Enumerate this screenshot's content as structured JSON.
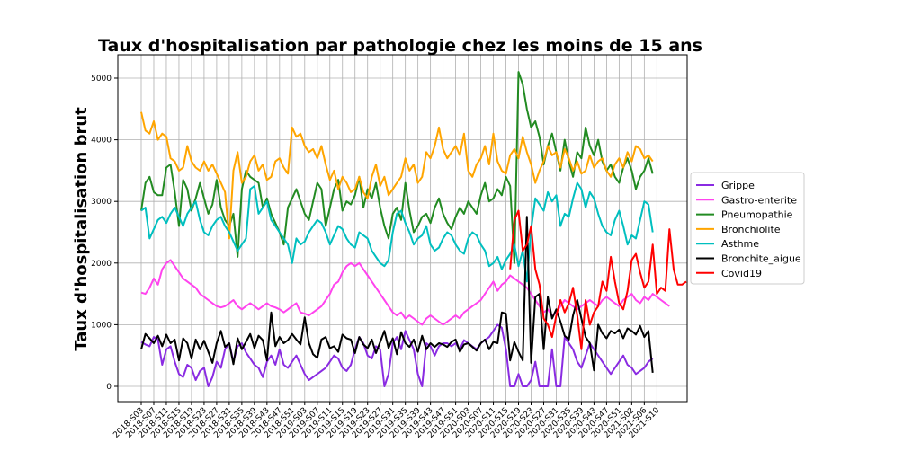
{
  "chart_data": {
    "type": "line",
    "title": "Taux d'hospitalisation par pathologie chez les moins de 15 ans",
    "ylabel": "Taux d'hospitalisation brut",
    "xlabel": "",
    "ylim": [
      0,
      5200
    ],
    "yticks": [
      0,
      1000,
      2000,
      3000,
      4000,
      5000
    ],
    "grid": true,
    "legend": "right",
    "tick_labels": [
      "2018-S03",
      "2018-S07",
      "2018-S11",
      "2018-S15",
      "2018-S19",
      "2018-S23",
      "2018-S27",
      "2018-S31",
      "2018-S35",
      "2018-S39",
      "2018-S43",
      "2018-S47",
      "2018-S51",
      "2019-S03",
      "2019-S07",
      "2019-S11",
      "2019-S15",
      "2019-S19",
      "2019-S23",
      "2019-S27",
      "2019-S31",
      "2019-S35",
      "2019-S39",
      "2019-S43",
      "2019-S47",
      "2019-S51",
      "2020-S03",
      "2020-S07",
      "2020-S11",
      "2020-S15",
      "2020-S19",
      "2020-S23",
      "2020-S27",
      "2020-S31",
      "2020-S35",
      "2020-S39",
      "2020-S43",
      "2020-S47",
      "2020-S51",
      "2021-S02",
      "2021-S06",
      "2021-S10"
    ],
    "series": [
      {
        "name": "Grippe",
        "color": "#8a2be2",
        "start": 0,
        "values": [
          720,
          680,
          650,
          800,
          760,
          350,
          600,
          650,
          400,
          200,
          150,
          350,
          300,
          100,
          250,
          300,
          0,
          150,
          400,
          300,
          600,
          700,
          400,
          650,
          700,
          550,
          450,
          350,
          300,
          150,
          400,
          500,
          350,
          600,
          350,
          300,
          400,
          500,
          350,
          200,
          100,
          150,
          200,
          250,
          300,
          400,
          500,
          450,
          300,
          250,
          350,
          600,
          800,
          700,
          500,
          450,
          650,
          600,
          0,
          200,
          700,
          800,
          600,
          900,
          750,
          600,
          200,
          0,
          700,
          650,
          500,
          650,
          700,
          700,
          650,
          700,
          600,
          750,
          700,
          650,
          600,
          700,
          750,
          800,
          900,
          1000,
          950,
          600,
          0,
          0,
          200,
          0,
          0,
          100,
          400,
          0,
          0,
          0,
          600,
          0,
          0,
          800,
          700,
          600,
          400,
          300,
          500,
          700,
          600,
          500,
          400,
          300,
          200,
          300,
          400,
          500,
          350,
          300,
          200,
          250,
          300,
          400,
          450
        ]
      },
      {
        "name": "Gastro-enterite",
        "color": "#ff44ee",
        "start": 0,
        "values": [
          1520,
          1500,
          1600,
          1750,
          1650,
          1900,
          2000,
          2050,
          1950,
          1850,
          1750,
          1700,
          1650,
          1600,
          1500,
          1450,
          1400,
          1350,
          1300,
          1280,
          1300,
          1350,
          1400,
          1300,
          1250,
          1300,
          1350,
          1300,
          1250,
          1300,
          1350,
          1300,
          1280,
          1250,
          1200,
          1250,
          1300,
          1350,
          1200,
          1180,
          1150,
          1200,
          1250,
          1300,
          1400,
          1500,
          1650,
          1700,
          1850,
          1950,
          2000,
          1950,
          2000,
          1900,
          1800,
          1700,
          1600,
          1500,
          1400,
          1300,
          1200,
          1150,
          1200,
          1100,
          1150,
          1100,
          1050,
          1000,
          1100,
          1150,
          1100,
          1050,
          1000,
          1050,
          1100,
          1150,
          1100,
          1200,
          1250,
          1300,
          1350,
          1400,
          1500,
          1600,
          1700,
          1550,
          1650,
          1700,
          1800,
          1750,
          1700,
          1650,
          1600,
          1500,
          1400,
          1300,
          1200,
          1250,
          1150,
          1200,
          1300,
          1400,
          1350,
          1300,
          1250,
          1300,
          1350,
          1400,
          1350,
          1300,
          1400,
          1450,
          1400,
          1350,
          1300,
          1400,
          1450,
          1500,
          1400,
          1350,
          1450,
          1400,
          1500,
          1450,
          1400,
          1350,
          1300
        ]
      },
      {
        "name": "Pneumopathie",
        "color": "#228b22",
        "start": 0,
        "values": [
          2850,
          3300,
          3400,
          3150,
          3100,
          3100,
          3550,
          3600,
          3150,
          2600,
          3350,
          3200,
          2850,
          3050,
          3300,
          3050,
          2800,
          2950,
          3350,
          2900,
          2700,
          2600,
          2800,
          2100,
          3200,
          3500,
          3400,
          3350,
          3300,
          2900,
          3050,
          2800,
          2650,
          2500,
          2300,
          2900,
          3050,
          3200,
          3000,
          2800,
          2700,
          3000,
          3300,
          3200,
          2600,
          2900,
          3200,
          3350,
          2850,
          3000,
          2950,
          3100,
          3400,
          2900,
          3200,
          3050,
          3300,
          2900,
          2600,
          2400,
          2800,
          2900,
          2700,
          3300,
          2850,
          2500,
          2600,
          2750,
          2800,
          2650,
          2900,
          3050,
          2800,
          2650,
          2550,
          2750,
          2900,
          2800,
          3000,
          2900,
          2800,
          3100,
          3300,
          3000,
          3050,
          3200,
          3100,
          3400,
          3250,
          2000,
          5100,
          4900,
          4500,
          4200,
          4300,
          4050,
          3600,
          3900,
          4100,
          3800,
          3500,
          4000,
          3650,
          3400,
          3800,
          3700,
          4200,
          3900,
          3750,
          4000,
          3650,
          3500,
          3600,
          3400,
          3300,
          3550,
          3700,
          3500,
          3200,
          3400,
          3500,
          3700,
          3450
        ]
      },
      {
        "name": "Bronchiolite",
        "color": "#ffa500",
        "start": 0,
        "values": [
          4450,
          4150,
          4100,
          4300,
          4000,
          4100,
          4050,
          3700,
          3650,
          3500,
          3550,
          3900,
          3650,
          3550,
          3500,
          3650,
          3500,
          3600,
          3450,
          3300,
          3150,
          2400,
          3500,
          3800,
          3300,
          3400,
          3650,
          3750,
          3500,
          3600,
          3350,
          3400,
          3650,
          3700,
          3550,
          3450,
          4200,
          4050,
          4100,
          3900,
          3800,
          3850,
          3700,
          3900,
          3600,
          3350,
          3500,
          3200,
          3400,
          3300,
          3150,
          3200,
          3400,
          3150,
          3050,
          3400,
          3600,
          3250,
          3400,
          3100,
          3200,
          3300,
          3400,
          3700,
          3500,
          3600,
          3300,
          3400,
          3800,
          3700,
          3900,
          4200,
          3850,
          3700,
          3800,
          3900,
          3750,
          4100,
          3500,
          3400,
          3600,
          3700,
          3900,
          3600,
          4100,
          3650,
          3500,
          3450,
          3750,
          3850,
          3700,
          4050,
          3800,
          3600,
          3300,
          3500,
          3650,
          3900,
          3750,
          3800,
          3550,
          3850,
          3700,
          3500,
          3650,
          3450,
          3500,
          3750,
          3550,
          3650,
          3700,
          3500,
          3400,
          3600,
          3700,
          3550,
          3800,
          3650,
          3900,
          3850,
          3700,
          3750,
          3650
        ]
      },
      {
        "name": "Asthme",
        "color": "#00bfbf",
        "start": 0,
        "values": [
          2850,
          2900,
          2400,
          2550,
          2700,
          2750,
          2650,
          2800,
          2900,
          2750,
          2600,
          2800,
          2900,
          3000,
          2700,
          2500,
          2450,
          2600,
          2700,
          2750,
          2600,
          2500,
          2350,
          2200,
          2300,
          2400,
          3200,
          3250,
          2800,
          2900,
          3000,
          2700,
          2600,
          2500,
          2400,
          2300,
          2000,
          2400,
          2300,
          2350,
          2500,
          2600,
          2700,
          2650,
          2500,
          2300,
          2450,
          2600,
          2550,
          2400,
          2300,
          2250,
          2500,
          2450,
          2400,
          2200,
          2100,
          2000,
          1950,
          2050,
          2500,
          2800,
          2850,
          2650,
          2500,
          2300,
          2400,
          2450,
          2600,
          2300,
          2200,
          2250,
          2400,
          2500,
          2450,
          2300,
          2200,
          2150,
          2400,
          2500,
          2450,
          2300,
          2200,
          1950,
          2000,
          2100,
          1900,
          2050,
          2150,
          2300,
          1950,
          2200,
          1700,
          2550,
          3050,
          2950,
          2850,
          3150,
          3000,
          3100,
          2600,
          2800,
          2750,
          3050,
          3300,
          3200,
          2900,
          3150,
          3050,
          2800,
          2600,
          2500,
          2450,
          2700,
          2850,
          2600,
          2300,
          2450,
          2400,
          2700,
          3000,
          2950,
          2500
        ]
      },
      {
        "name": "Bronchite_aigue",
        "color": "#000000",
        "start": 0,
        "values": [
          600,
          850,
          780,
          700,
          820,
          650,
          840,
          700,
          760,
          420,
          780,
          700,
          450,
          760,
          600,
          740,
          560,
          380,
          700,
          900,
          640,
          700,
          360,
          780,
          600,
          720,
          850,
          620,
          820,
          750,
          420,
          1200,
          650,
          800,
          700,
          750,
          850,
          760,
          680,
          1120,
          700,
          520,
          460,
          760,
          800,
          620,
          650,
          560,
          840,
          780,
          760,
          540,
          800,
          680,
          620,
          760,
          540,
          720,
          900,
          620,
          780,
          520,
          880,
          700,
          640,
          760,
          560,
          820,
          600,
          700,
          640,
          700,
          680,
          640,
          720,
          760,
          560,
          680,
          700,
          640,
          580,
          700,
          760,
          600,
          720,
          700,
          1200,
          1180,
          420,
          720,
          560,
          420,
          2750,
          380,
          1450,
          1500,
          600,
          1450,
          1100,
          1250,
          1050,
          820,
          760,
          1150,
          1400,
          1100,
          800,
          700,
          260,
          1000,
          860,
          780,
          900,
          860,
          920,
          780,
          940,
          900,
          840,
          980,
          800,
          900,
          220
        ]
      },
      {
        "name": "Covid19",
        "color": "#ff0000",
        "start": 88,
        "values": [
          1900,
          2700,
          2850,
          2200,
          2300,
          2600,
          1900,
          1650,
          1100,
          1000,
          800,
          1150,
          1400,
          1200,
          1350,
          1600,
          1150,
          600,
          1400,
          1000,
          1200,
          1300,
          1700,
          1550,
          2100,
          1700,
          1350,
          1250,
          1550,
          2050,
          2150,
          1850,
          1600,
          1700,
          2300,
          1500,
          1600,
          1550,
          2550,
          1900,
          1650,
          1650,
          1700
        ]
      }
    ]
  }
}
